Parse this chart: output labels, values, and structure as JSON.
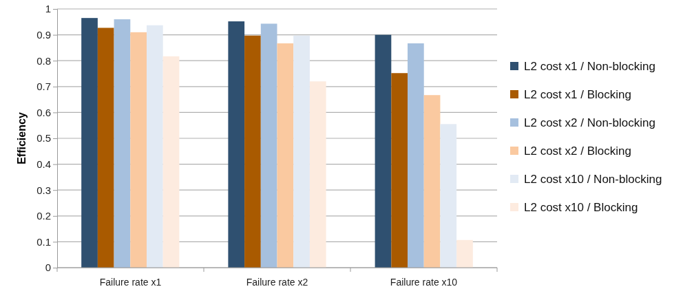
{
  "chart_data": {
    "type": "bar",
    "ylabel": "Efficiency",
    "categories": [
      "Failure rate x1",
      "Failure rate x2",
      "Failure rate x10"
    ],
    "series": [
      {
        "name": "L2 cost x1 / Non-blocking",
        "color": "#2f5070",
        "values": [
          0.965,
          0.952,
          0.9
        ]
      },
      {
        "name": "L2 cost x1 / Blocking",
        "color": "#a95a00",
        "values": [
          0.927,
          0.897,
          0.752
        ]
      },
      {
        "name": "L2 cost x2 / Non-blocking",
        "color": "#a6c0de",
        "values": [
          0.96,
          0.943,
          0.867
        ]
      },
      {
        "name": "L2 cost x2 / Blocking",
        "color": "#fac9a0",
        "values": [
          0.91,
          0.867,
          0.667
        ]
      },
      {
        "name": "L2 cost x10 / Non-blocking",
        "color": "#e2eaf4",
        "values": [
          0.937,
          0.897,
          0.555
        ]
      },
      {
        "name": "L2 cost x10 / Blocking",
        "color": "#fdebdf",
        "values": [
          0.817,
          0.72,
          0.107
        ]
      }
    ],
    "ylim": [
      0,
      1
    ],
    "yticks": [
      0,
      0.1,
      0.2,
      0.3,
      0.4,
      0.5,
      0.6,
      0.7,
      0.8,
      0.9,
      1
    ],
    "grid": "y",
    "legend": "right"
  }
}
